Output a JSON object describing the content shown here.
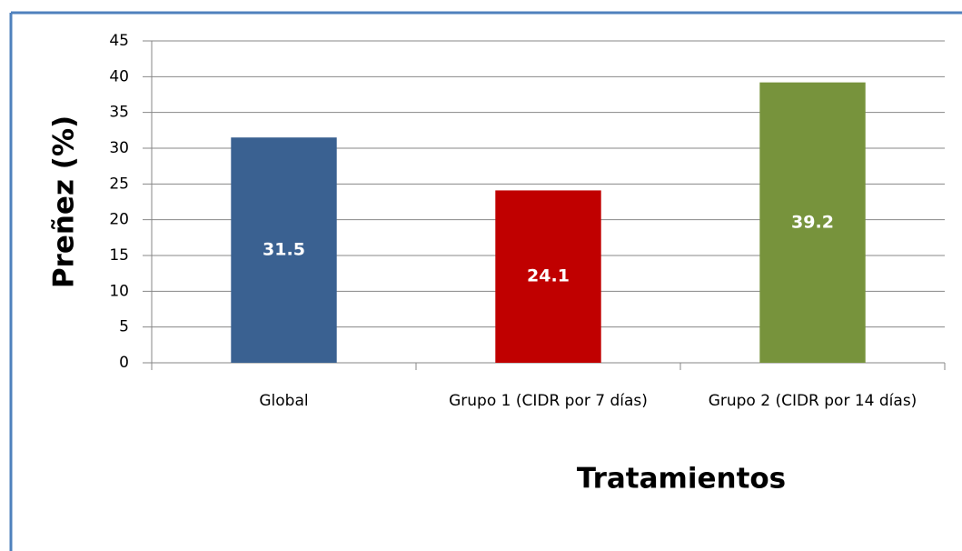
{
  "chart_data": {
    "type": "bar",
    "categories": [
      "Global",
      "Grupo 1 (CIDR por 7 días)",
      "Grupo 2 (CIDR por 14 días)"
    ],
    "values": [
      31.5,
      24.1,
      39.2
    ],
    "colors": [
      "#3a6191",
      "#c00000",
      "#77933c"
    ],
    "x_label": "Tratamientos",
    "y_label": "Preñez (%)",
    "ylim": [
      0,
      45
    ],
    "yticks": [
      0,
      5,
      10,
      15,
      20,
      25,
      30,
      35,
      40,
      45
    ],
    "grid": true
  }
}
